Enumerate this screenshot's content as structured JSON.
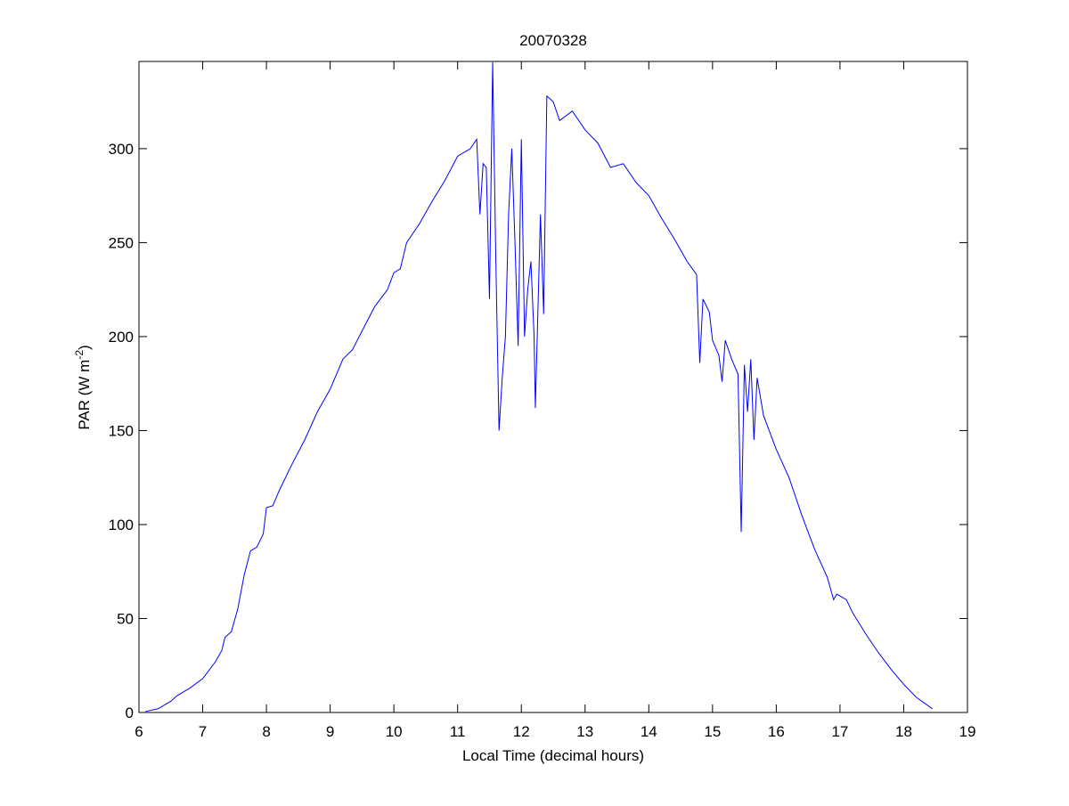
{
  "chart_data": {
    "type": "line",
    "title": "20070328",
    "xlabel": "Local Time (decimal hours)",
    "ylabel_parts": [
      "PAR (W m",
      "-2",
      ")"
    ],
    "color": "#0000ff",
    "x": [
      6.1,
      6.3,
      6.5,
      6.6,
      6.8,
      7.0,
      7.2,
      7.3,
      7.35,
      7.45,
      7.55,
      7.65,
      7.75,
      7.85,
      7.95,
      8.0,
      8.1,
      8.2,
      8.4,
      8.6,
      8.8,
      9.0,
      9.2,
      9.35,
      9.5,
      9.7,
      9.9,
      10.0,
      10.1,
      10.2,
      10.4,
      10.6,
      10.8,
      11.0,
      11.2,
      11.3,
      11.35,
      11.4,
      11.45,
      11.5,
      11.55,
      11.6,
      11.65,
      11.7,
      11.75,
      11.8,
      11.85,
      11.9,
      11.95,
      12.0,
      12.05,
      12.1,
      12.15,
      12.2,
      12.22,
      12.3,
      12.35,
      12.4,
      12.5,
      12.6,
      12.8,
      13.0,
      13.2,
      13.4,
      13.6,
      13.8,
      14.0,
      14.2,
      14.4,
      14.6,
      14.75,
      14.8,
      14.85,
      14.95,
      15.0,
      15.1,
      15.15,
      15.2,
      15.3,
      15.4,
      15.45,
      15.5,
      15.55,
      15.6,
      15.65,
      15.7,
      15.8,
      16.0,
      16.2,
      16.4,
      16.6,
      16.8,
      16.9,
      16.95,
      17.1,
      17.2,
      17.4,
      17.6,
      17.8,
      18.0,
      18.2,
      18.45
    ],
    "values": [
      0.5,
      2,
      6,
      9,
      13,
      18,
      27,
      33,
      40,
      43,
      55,
      73,
      86,
      88,
      95,
      109,
      110,
      118,
      132,
      145,
      160,
      172,
      188,
      193,
      203,
      216,
      225,
      234,
      236,
      250,
      260,
      272,
      283,
      296,
      300,
      305,
      265,
      292,
      290,
      220,
      346,
      240,
      150,
      178,
      200,
      265,
      300,
      250,
      195,
      305,
      200,
      225,
      240,
      200,
      162,
      265,
      212,
      328,
      325,
      315,
      320,
      310,
      303,
      290,
      292,
      282,
      275,
      263,
      252,
      240,
      233,
      186,
      220,
      213,
      198,
      190,
      176,
      198,
      188,
      180,
      96,
      185,
      160,
      188,
      145,
      178,
      158,
      140,
      125,
      105,
      87,
      72,
      60,
      63,
      60,
      53,
      42,
      32,
      23,
      15,
      8,
      2
    ],
    "xlim": [
      6,
      19
    ],
    "ylim": [
      0,
      346.4
    ],
    "xticks": [
      6,
      7,
      8,
      9,
      10,
      11,
      12,
      13,
      14,
      15,
      16,
      17,
      18,
      19
    ],
    "yticks": [
      0,
      50,
      100,
      150,
      200,
      250,
      300
    ]
  }
}
